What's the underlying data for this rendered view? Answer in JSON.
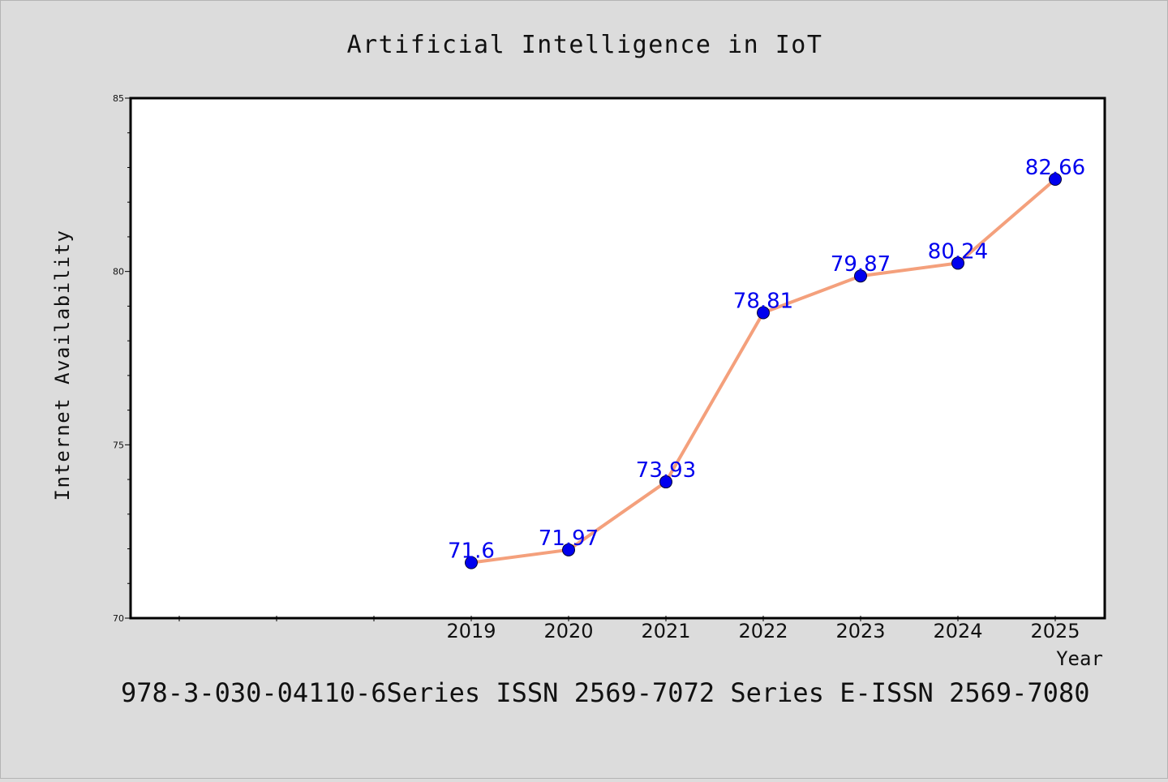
{
  "chart_data": {
    "type": "line",
    "title": "Artificial Intelligence in IoT",
    "xlabel": "Year",
    "ylabel": "Internet Availability",
    "x": [
      "2019",
      "2020",
      "2021",
      "2022",
      "2023",
      "2024",
      "2025"
    ],
    "series": [
      {
        "values": [
          71.6,
          71.97,
          73.93,
          78.81,
          79.87,
          80.24,
          82.66
        ]
      }
    ],
    "data_labels": [
      "71.6",
      "71.97",
      "73.93",
      "78.81",
      "79.87",
      "80.24",
      "82.66"
    ],
    "ylim": [
      70,
      85
    ],
    "y_ticks": [
      70,
      75,
      80,
      85
    ],
    "y_tick_labels": [
      "70",
      "75",
      "80",
      "85"
    ],
    "grid": false,
    "legend": "none",
    "colors": {
      "line": "#f4a07c",
      "marker": "#0000ee",
      "label": "#0000ee",
      "background": "#dcdcdc",
      "plot_background": "#ffffff"
    }
  },
  "footnote": "978-3-030-04110-6Series ISSN 2569-7072 Series E-ISSN 2569-7080"
}
